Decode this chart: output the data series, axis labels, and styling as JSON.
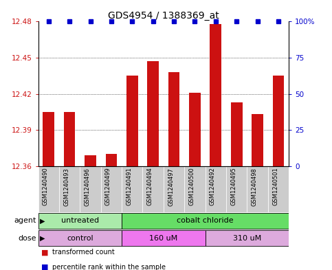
{
  "title": "GDS4954 / 1388369_at",
  "samples": [
    "GSM1240490",
    "GSM1240493",
    "GSM1240496",
    "GSM1240499",
    "GSM1240491",
    "GSM1240494",
    "GSM1240497",
    "GSM1240500",
    "GSM1240492",
    "GSM1240495",
    "GSM1240498",
    "GSM1240501"
  ],
  "bar_values": [
    12.405,
    12.405,
    12.369,
    12.37,
    12.435,
    12.447,
    12.438,
    12.421,
    12.478,
    12.413,
    12.403,
    12.435
  ],
  "ymin": 12.36,
  "ymax": 12.48,
  "yticks": [
    12.36,
    12.39,
    12.42,
    12.45,
    12.48
  ],
  "right_yticks": [
    0,
    25,
    50,
    75,
    100
  ],
  "right_yticklabels": [
    "0",
    "25",
    "50",
    "75",
    "100%"
  ],
  "bar_color": "#cc1111",
  "dot_color": "#0000cc",
  "dot_size": 4,
  "agent_groups": [
    {
      "label": "untreated",
      "start": 0,
      "end": 4,
      "color": "#aaeaaa"
    },
    {
      "label": "cobalt chloride",
      "start": 4,
      "end": 12,
      "color": "#66dd66"
    }
  ],
  "dose_groups": [
    {
      "label": "control",
      "start": 0,
      "end": 4,
      "color": "#ddaadd"
    },
    {
      "label": "160 uM",
      "start": 4,
      "end": 8,
      "color": "#ee77ee"
    },
    {
      "label": "310 uM",
      "start": 8,
      "end": 12,
      "color": "#ddaadd"
    }
  ],
  "legend_items": [
    {
      "color": "#cc1111",
      "label": "transformed count"
    },
    {
      "color": "#0000cc",
      "label": "percentile rank within the sample"
    }
  ],
  "title_fontsize": 10,
  "tick_fontsize": 7.5,
  "sample_fontsize": 6.0,
  "bar_width": 0.55,
  "sample_bg_color": "#cccccc",
  "row_label_fontsize": 8,
  "group_label_fontsize": 8
}
